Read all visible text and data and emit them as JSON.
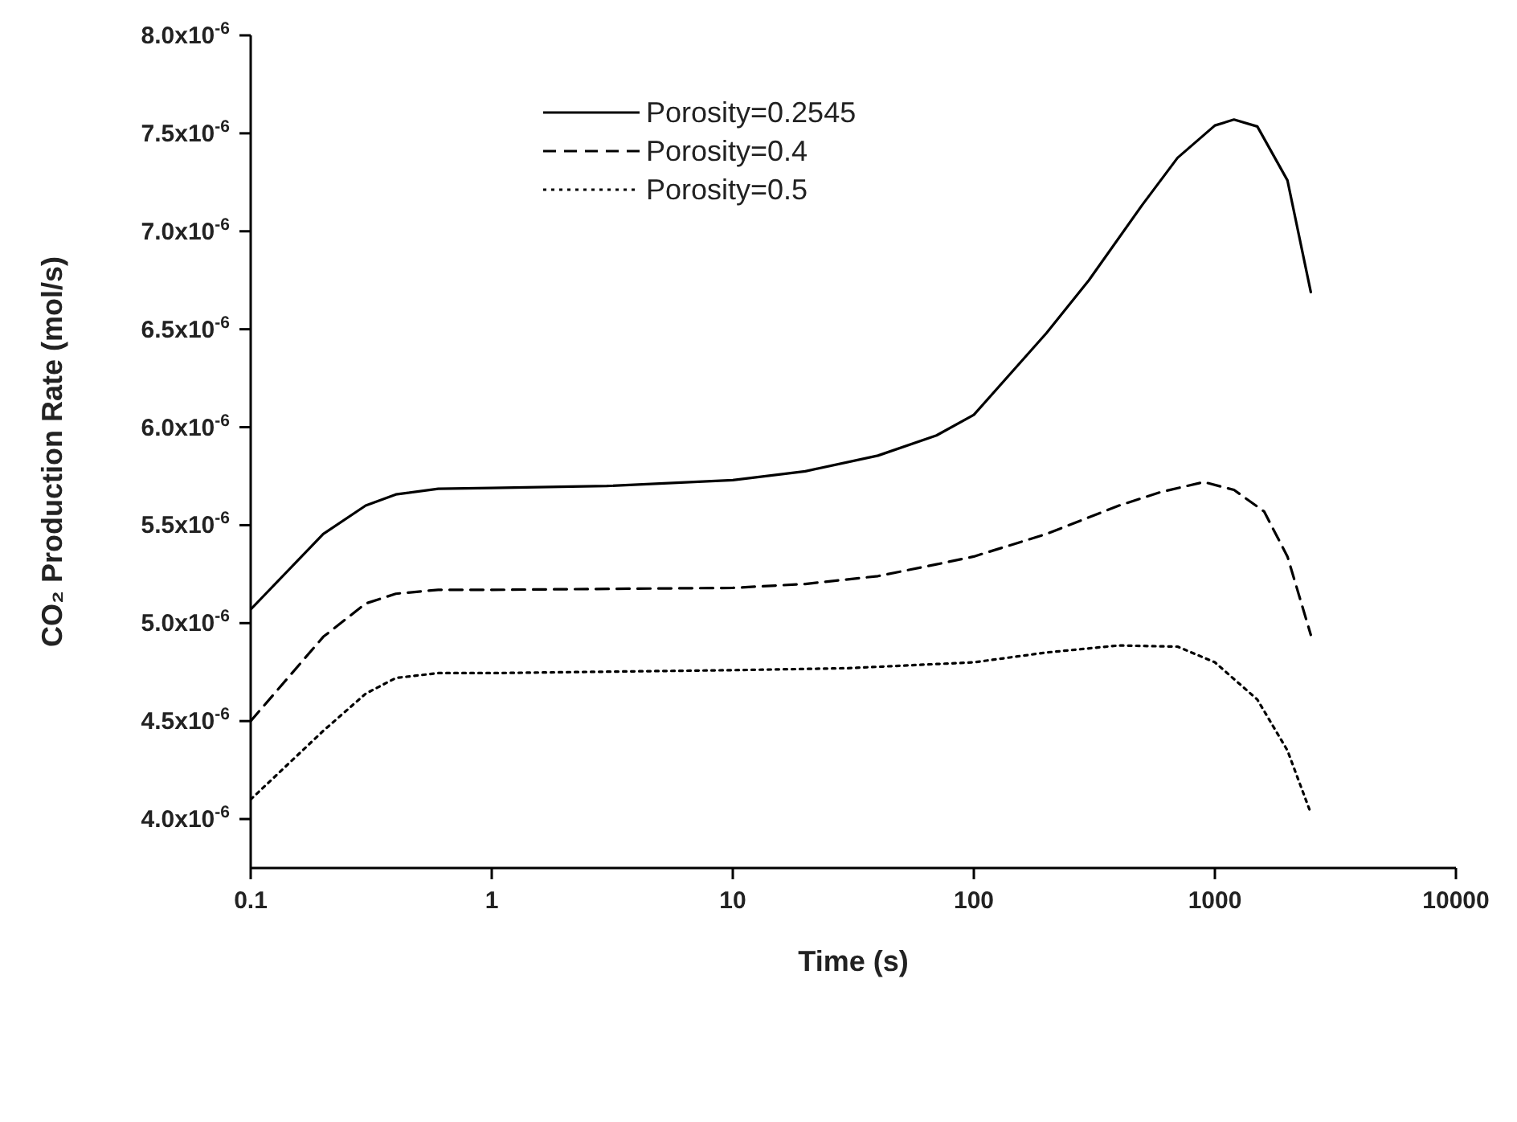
{
  "chart_data": {
    "type": "line",
    "xlabel": "Time (s)",
    "ylabel": "CO₂ Production Rate (mol/s)",
    "log": "x",
    "xlim": [
      0.1,
      10000
    ],
    "xticks": [
      0.1,
      1,
      10,
      100,
      1000,
      10000
    ],
    "ylim": [
      3.75e-06,
      8e-06
    ],
    "yticks": [
      {
        "value": 4e-06,
        "label": "4.0x10$^{-6}$"
      },
      {
        "value": 4.5e-06,
        "label": "4.5x10$^{-6}$"
      },
      {
        "value": 5e-06,
        "label": "5.0x10$^{-6}$"
      },
      {
        "value": 5.5e-06,
        "label": "5.5x10$^{-6}$"
      },
      {
        "value": 6e-06,
        "label": "6.0x10$^{-6}$"
      },
      {
        "value": 6.5e-06,
        "label": "6.5x10$^{-6}$"
      },
      {
        "value": 7e-06,
        "label": "7.0x10$^{-6}$"
      },
      {
        "value": 7.5e-06,
        "label": "7.5x10$^{-6}$"
      },
      {
        "value": 8e-06,
        "label": "8.0x10$^{-6}$"
      }
    ],
    "grid": false,
    "legend": "top",
    "marker": "none",
    "series": [
      {
        "name": "Porosity=0.2545",
        "color": "#000000",
        "line_style": "solid",
        "x": [
          0.1,
          0.2,
          0.3,
          0.4,
          0.6,
          1,
          3,
          10,
          20,
          40,
          70,
          100,
          200,
          300,
          500,
          700,
          1000,
          1200,
          1500,
          2000,
          2500
        ],
        "values": [
          5.07e-06,
          5.455e-06,
          5.6e-06,
          5.657e-06,
          5.686e-06,
          5.69e-06,
          5.7e-06,
          5.73e-06,
          5.775e-06,
          5.855e-06,
          5.958e-06,
          6.063e-06,
          6.48e-06,
          6.75e-06,
          7.135e-06,
          7.375e-06,
          7.54e-06,
          7.57e-06,
          7.535e-06,
          7.26e-06,
          6.69e-06
        ]
      },
      {
        "name": "Porosity=0.4",
        "color": "#000000",
        "line_style": "dashed",
        "x": [
          0.1,
          0.2,
          0.3,
          0.4,
          0.6,
          1,
          10,
          20,
          40,
          70,
          100,
          200,
          400,
          600,
          900,
          1200,
          1600,
          2000,
          2500
        ],
        "values": [
          4.5e-06,
          4.93e-06,
          5.1e-06,
          5.15e-06,
          5.17e-06,
          5.17e-06,
          5.18e-06,
          5.2e-06,
          5.24e-06,
          5.3e-06,
          5.34e-06,
          5.455e-06,
          5.6e-06,
          5.67e-06,
          5.72e-06,
          5.68e-06,
          5.57e-06,
          5.34e-06,
          4.94e-06
        ]
      },
      {
        "name": "Porosity=0.5",
        "color": "#000000",
        "line_style": "dotted",
        "x": [
          0.1,
          0.2,
          0.3,
          0.4,
          0.6,
          1,
          10,
          30,
          100,
          200,
          400,
          700,
          1000,
          1500,
          2000,
          2500
        ],
        "values": [
          4.1e-06,
          4.45e-06,
          4.64e-06,
          4.72e-06,
          4.745e-06,
          4.745e-06,
          4.76e-06,
          4.77e-06,
          4.8e-06,
          4.85e-06,
          4.886e-06,
          4.88e-06,
          4.8e-06,
          4.61e-06,
          4.35e-06,
          4.03e-06
        ]
      }
    ]
  }
}
